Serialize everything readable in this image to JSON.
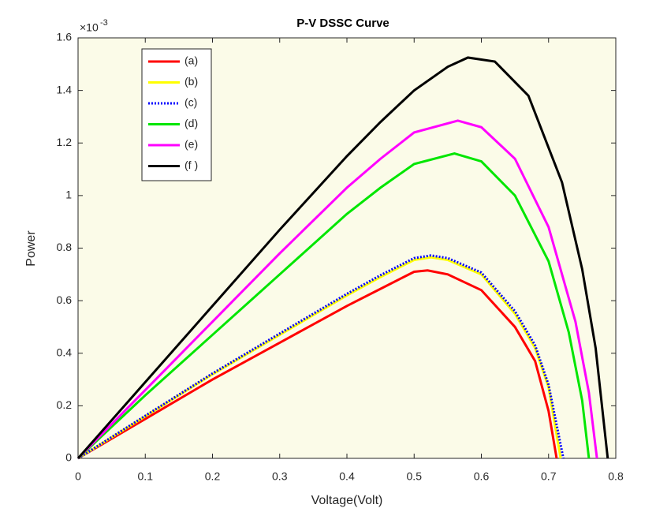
{
  "chart_data": {
    "type": "line",
    "title": "P-V DSSC Curve",
    "x_label": "Voltage(Volt)",
    "y_label": "Power",
    "y_multiplier_base": "×10",
    "y_multiplier_exponent": "-3",
    "xlim": [
      0,
      0.8
    ],
    "ylim": [
      0,
      1.6
    ],
    "xticks": [
      0,
      0.1,
      0.2,
      0.3,
      0.4,
      0.5,
      0.6,
      0.7,
      0.8
    ],
    "yticks": [
      0,
      0.2,
      0.4,
      0.6,
      0.8,
      1,
      1.2,
      1.4,
      1.6
    ],
    "legend": "upper left",
    "series": [
      {
        "name": "(a)",
        "color": "#ff0000",
        "dash": "solid",
        "x": [
          0,
          0.1,
          0.2,
          0.3,
          0.4,
          0.45,
          0.5,
          0.52,
          0.55,
          0.6,
          0.65,
          0.68,
          0.7,
          0.712
        ],
        "values": [
          0,
          0.15,
          0.3,
          0.44,
          0.58,
          0.645,
          0.71,
          0.715,
          0.7,
          0.64,
          0.5,
          0.37,
          0.18,
          0
        ]
      },
      {
        "name": "(b)",
        "color": "#ffff00",
        "dash": "solid",
        "x": [
          0,
          0.1,
          0.2,
          0.3,
          0.4,
          0.45,
          0.5,
          0.525,
          0.55,
          0.6,
          0.65,
          0.68,
          0.7,
          0.718
        ],
        "values": [
          0,
          0.16,
          0.32,
          0.47,
          0.62,
          0.69,
          0.755,
          0.765,
          0.755,
          0.7,
          0.55,
          0.42,
          0.27,
          0
        ]
      },
      {
        "name": "(c)",
        "color": "#0000ff",
        "dash": "dotted",
        "x": [
          0,
          0.1,
          0.2,
          0.3,
          0.4,
          0.45,
          0.5,
          0.525,
          0.55,
          0.6,
          0.65,
          0.68,
          0.7,
          0.722
        ],
        "values": [
          0,
          0.162,
          0.323,
          0.475,
          0.626,
          0.697,
          0.762,
          0.772,
          0.762,
          0.707,
          0.56,
          0.43,
          0.28,
          0
        ]
      },
      {
        "name": "(d)",
        "color": "#00e600",
        "dash": "solid",
        "x": [
          0,
          0.1,
          0.2,
          0.3,
          0.4,
          0.45,
          0.5,
          0.56,
          0.6,
          0.65,
          0.7,
          0.73,
          0.75,
          0.76
        ],
        "values": [
          0,
          0.24,
          0.47,
          0.7,
          0.93,
          1.03,
          1.12,
          1.16,
          1.13,
          1.0,
          0.75,
          0.48,
          0.22,
          0
        ]
      },
      {
        "name": "(e)",
        "color": "#ff00ff",
        "dash": "solid",
        "x": [
          0,
          0.1,
          0.2,
          0.3,
          0.4,
          0.45,
          0.5,
          0.565,
          0.6,
          0.65,
          0.7,
          0.74,
          0.76,
          0.772
        ],
        "values": [
          0,
          0.26,
          0.52,
          0.78,
          1.03,
          1.14,
          1.24,
          1.285,
          1.26,
          1.14,
          0.88,
          0.52,
          0.25,
          0
        ]
      },
      {
        "name": "(f )",
        "color": "#000000",
        "dash": "solid",
        "x": [
          0,
          0.1,
          0.2,
          0.3,
          0.4,
          0.45,
          0.5,
          0.55,
          0.58,
          0.62,
          0.67,
          0.72,
          0.75,
          0.77,
          0.788
        ],
        "values": [
          0,
          0.29,
          0.58,
          0.87,
          1.15,
          1.28,
          1.4,
          1.49,
          1.525,
          1.51,
          1.38,
          1.05,
          0.72,
          0.42,
          0
        ]
      }
    ]
  }
}
